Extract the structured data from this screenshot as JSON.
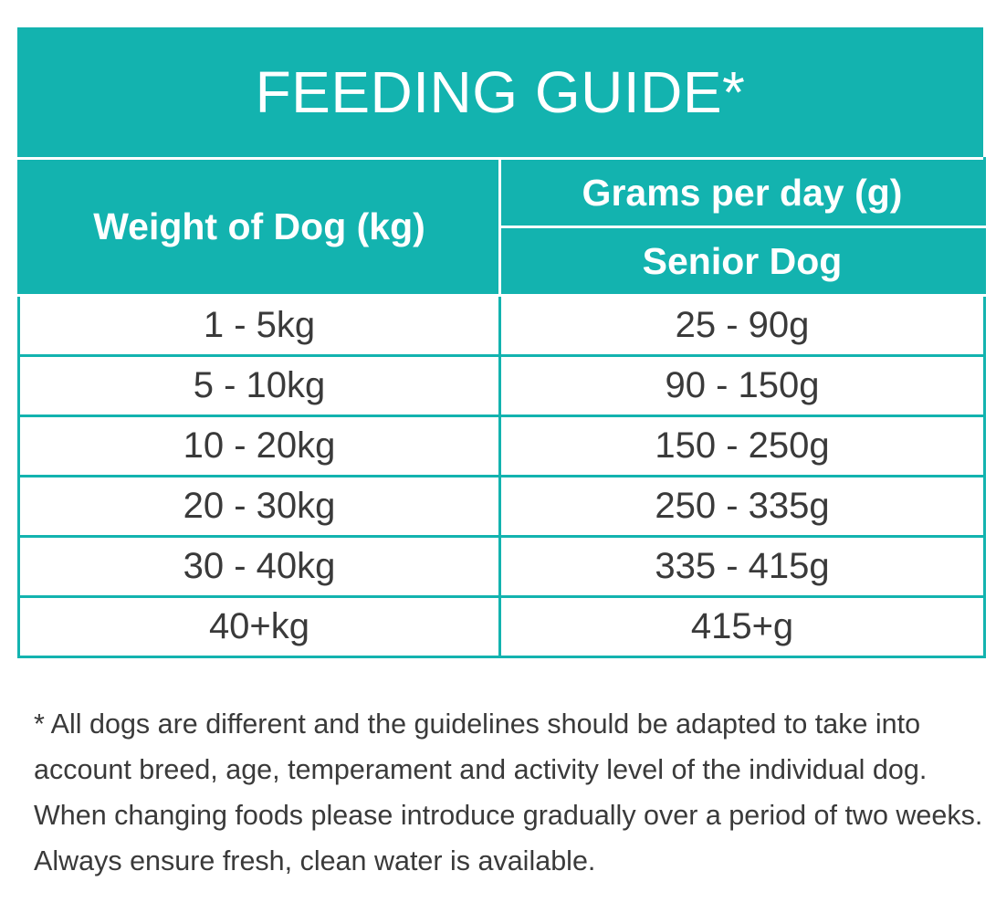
{
  "title": "FEEDING GUIDE*",
  "table": {
    "header_weight": "Weight of Dog (kg)",
    "header_grams": "Grams per day (g)",
    "header_senior": "Senior Dog",
    "rows": [
      {
        "weight": "1 - 5kg",
        "grams": "25 - 90g"
      },
      {
        "weight": "5 - 10kg",
        "grams": "90 - 150g"
      },
      {
        "weight": "10 - 20kg",
        "grams": "150 - 250g"
      },
      {
        "weight": "20 - 30kg",
        "grams": "250 - 335g"
      },
      {
        "weight": "30 - 40kg",
        "grams": "335 - 415g"
      },
      {
        "weight": "40+kg",
        "grams": "415+g"
      }
    ]
  },
  "note_lines": [
    "* All dogs are different and the guidelines should be adapted to take into",
    "account breed, age, temperament and activity level of the individual dog.",
    "When changing foods please introduce gradually over a period of two weeks.",
    "Always ensure fresh, clean water is available."
  ],
  "colors": {
    "accent": "#13b3af",
    "text": "#3a3a3a"
  }
}
